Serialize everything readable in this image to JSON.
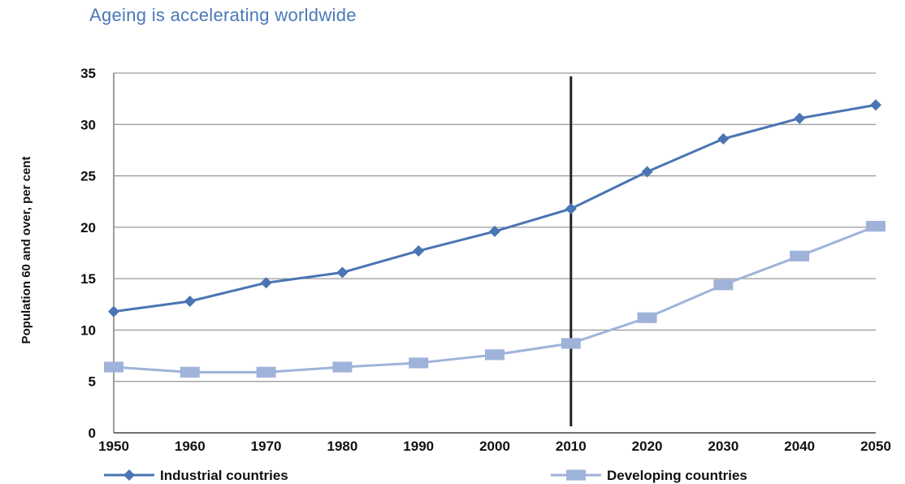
{
  "title": "Ageing is accelerating worldwide",
  "chart_data": {
    "type": "line",
    "title": "Ageing is accelerating worldwide",
    "xlabel": "",
    "ylabel": "Population 60 and over, per cent",
    "x": [
      1950,
      1960,
      1970,
      1980,
      1990,
      2000,
      2010,
      2020,
      2030,
      2040,
      2050
    ],
    "ylim": [
      0,
      35
    ],
    "yticks": [
      0,
      5,
      10,
      15,
      20,
      25,
      30,
      35
    ],
    "grid": true,
    "legend_position": "bottom",
    "reference_line_x": 2010,
    "series": [
      {
        "name": "Industrial countries",
        "marker": "diamond",
        "color": "#4a74b4",
        "values": [
          11.8,
          12.8,
          14.6,
          15.6,
          17.7,
          19.6,
          21.8,
          25.4,
          28.6,
          30.6,
          31.9
        ]
      },
      {
        "name": "Developing countries",
        "marker": "square",
        "color": "#9fb3da",
        "values": [
          6.4,
          5.9,
          5.9,
          6.4,
          6.8,
          7.6,
          8.7,
          11.2,
          14.4,
          17.2,
          20.1
        ]
      }
    ]
  }
}
